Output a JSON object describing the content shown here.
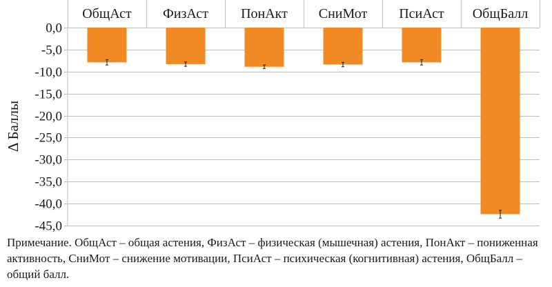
{
  "chart_data": {
    "type": "bar",
    "categories": [
      "ОбщАст",
      "ФизАст",
      "ПонАкт",
      "СниМот",
      "ПсиАст",
      "ОбщБалл"
    ],
    "values": [
      -7.9,
      -8.3,
      -8.9,
      -8.4,
      -7.9,
      -42.4
    ],
    "errors": [
      0.6,
      0.5,
      0.4,
      0.5,
      0.6,
      0.9
    ],
    "title": "",
    "xlabel": "",
    "ylabel": "Δ Баллы",
    "ylim": [
      -45,
      0
    ],
    "yticks": [
      "0,0",
      "-5,0",
      "-10,0",
      "-15,0",
      "-20,0",
      "-25,0",
      "-30,0",
      "-35,0",
      "-40,0",
      "-45,0"
    ],
    "grid": true,
    "legend": "none",
    "bar_color": "#f28a24",
    "grid_color": "#bfbfbf"
  },
  "note": "Примечание. ОбщАст – общая астения, ФизАст – физическая (мышечная) астения, ПонАкт – пониженная активность, СниМот – снижение мотивации, ПсиАст – психическая (когнитивная) астения, ОбщБалл – общий балл."
}
